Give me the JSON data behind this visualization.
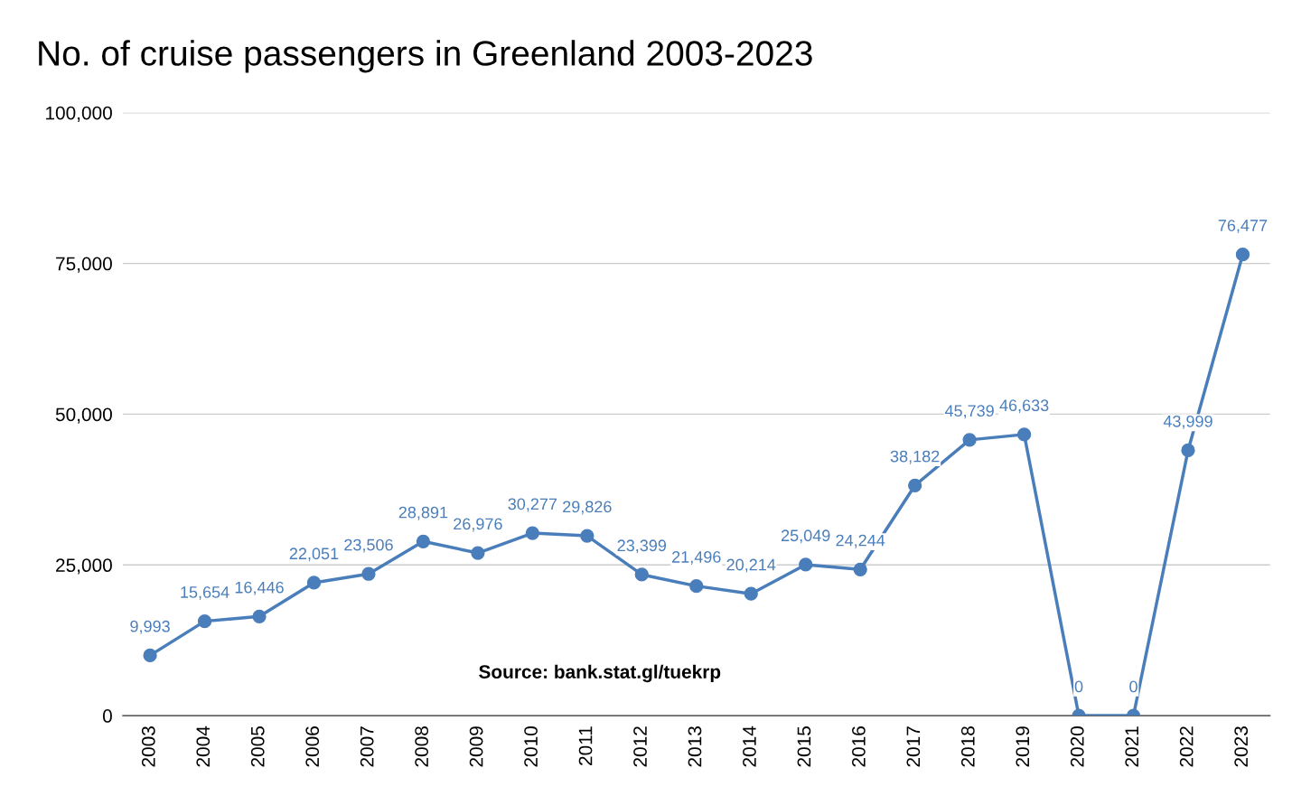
{
  "chart_data": {
    "type": "line",
    "title": "No. of cruise passengers in Greenland 2003-2023",
    "categories": [
      "2003",
      "2004",
      "2005",
      "2006",
      "2007",
      "2008",
      "2009",
      "2010",
      "2011",
      "2012",
      "2013",
      "2014",
      "2015",
      "2016",
      "2017",
      "2018",
      "2019",
      "2020",
      "2021",
      "2022",
      "2023"
    ],
    "series": [
      {
        "color": "#4a7ebb",
        "values": [
          9993,
          15654,
          16446,
          22051,
          23506,
          28891,
          26976,
          30277,
          29826,
          23399,
          21496,
          20214,
          25049,
          24244,
          38182,
          45739,
          46633,
          0,
          0,
          43999,
          76477
        ],
        "value_labels": [
          "9,993",
          "15,654",
          "16,446",
          "22,051",
          "23,506",
          "28,891",
          "26,976",
          "30,277",
          "29,826",
          "23,399",
          "21,496",
          "20,214",
          "25,049",
          "24,244",
          "38,182",
          "45,739",
          "46,633",
          "0",
          "0",
          "43,999",
          "76,477"
        ]
      }
    ],
    "ylim": [
      0,
      100000
    ],
    "yticks": [
      {
        "value": 0,
        "label": "0"
      },
      {
        "value": 25000,
        "label": "25,000"
      },
      {
        "value": 50000,
        "label": "50,000"
      },
      {
        "value": 75000,
        "label": "75,000"
      },
      {
        "value": 100000,
        "label": "100,000"
      }
    ],
    "grid": "y",
    "marker": "circle",
    "line_style": "solid",
    "annotations": [
      "Source: bank.stat.gl/tuekrp"
    ]
  }
}
